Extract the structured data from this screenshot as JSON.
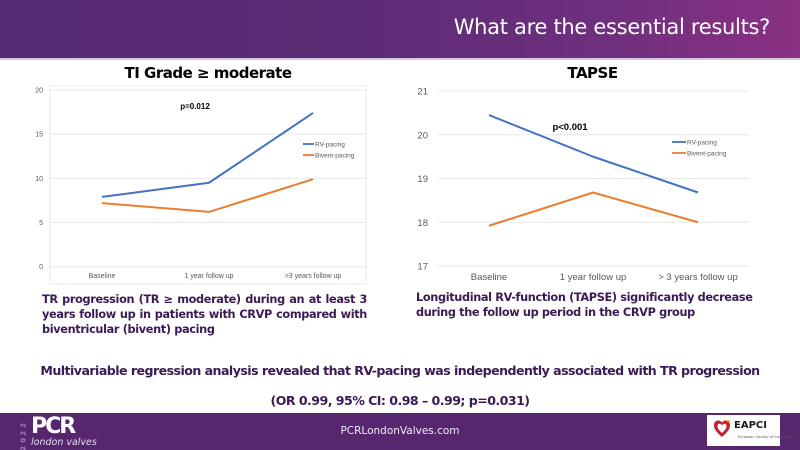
{
  "header": {
    "title": "What are the essential results?"
  },
  "chart_data": [
    {
      "type": "line",
      "title": "TI Grade ≥ moderate",
      "categories": [
        "Baseline",
        "1 year follow up",
        ">3 years follow up"
      ],
      "series": [
        {
          "name": "RV-pacing",
          "color": "#4472c4",
          "values": [
            7.9,
            9.5,
            17.4
          ]
        },
        {
          "name": "Bivent-pacing",
          "color": "#ed7d31",
          "values": [
            7.2,
            6.2,
            9.9
          ]
        }
      ],
      "yticks": [
        "0",
        "5",
        "10",
        "15",
        "20"
      ],
      "ylim": [
        0,
        20
      ],
      "xlabel": "",
      "ylabel": "",
      "grid": true,
      "legend_position": "right",
      "annotation": "p=0.012"
    },
    {
      "type": "line",
      "title": "TAPSE",
      "categories": [
        "Baseline",
        "1 year follow up",
        "> 3 years follow up"
      ],
      "series": [
        {
          "name": "RV-pacing",
          "color": "#4472c4",
          "values": [
            20.45,
            19.5,
            18.68
          ]
        },
        {
          "name": "Bivent-pacing",
          "color": "#ed7d31",
          "values": [
            17.92,
            18.68,
            18.0
          ]
        }
      ],
      "yticks": [
        "17",
        "18",
        "19",
        "20",
        "21"
      ],
      "ylim": [
        17,
        21
      ],
      "xlabel": "",
      "ylabel": "",
      "grid": true,
      "legend_position": "right",
      "annotation": "p<0.001"
    }
  ],
  "descriptions": {
    "left": "TR progression (TR ≥ moderate) during an at least 3 years follow up in patients with CRVP compared with biventricular (bivent) pacing",
    "right": "Longitudinal RV-function (TAPSE) significantly decrease during the follow up period in the CRVP group"
  },
  "conclusion": {
    "line1": "Multivariable regression analysis revealed that RV-pacing was independently associated with TR progression",
    "line2": "(OR 0.99, 95% CI: 0.98 – 0.99; p=0.031)"
  },
  "footer": {
    "logo_year": "2022",
    "logo_main": "PCR",
    "logo_sub": "london valves",
    "website": "PCRLondonValves.com",
    "partner_logo": "EAPCI",
    "partner_sub": "European Society of Cardiology"
  }
}
